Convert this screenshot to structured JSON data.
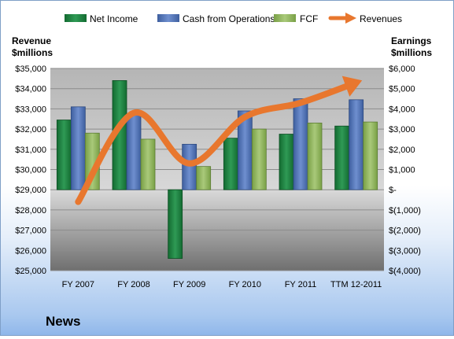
{
  "chart_data": {
    "type": "bar",
    "title": "News",
    "left_axis_label": [
      "Revenue",
      "$millions"
    ],
    "right_axis_label": [
      "Earnings",
      "$millions"
    ],
    "categories": [
      "FY 2007",
      "FY 2008",
      "FY 2009",
      "FY 2010",
      "FY 2011",
      "TTM 12-2011"
    ],
    "left_ticks": [
      "$35,000",
      "$34,000",
      "$33,000",
      "$32,000",
      "$31,000",
      "$30,000",
      "$29,000",
      "$28,000",
      "$27,000",
      "$26,000",
      "$25,000"
    ],
    "right_ticks": [
      "$6,000",
      "$5,000",
      "$4,000",
      "$3,000",
      "$2,000",
      "$1,000",
      "$-",
      "$(1,000)",
      "$(2,000)",
      "$(3,000)",
      "$(4,000)"
    ],
    "left_ylim": [
      25000,
      35000
    ],
    "right_ylim": [
      -4000,
      6000
    ],
    "series": [
      {
        "name": "Net Income",
        "axis": "right",
        "kind": "bar",
        "color": "#1f7a3e",
        "values": [
          3450,
          5400,
          -3400,
          2550,
          2750,
          3150
        ]
      },
      {
        "name": "Cash from Operations",
        "axis": "right",
        "kind": "bar",
        "color": "#4f73b8",
        "values": [
          4100,
          3750,
          2250,
          3900,
          4500,
          4450
        ]
      },
      {
        "name": "FCF",
        "axis": "right",
        "kind": "bar",
        "color": "#8fb35a",
        "values": [
          2800,
          2500,
          1150,
          3000,
          3300,
          3350
        ]
      },
      {
        "name": "Revenues",
        "axis": "left",
        "kind": "line",
        "color": "#e8772e",
        "values": [
          28400,
          32800,
          30300,
          32600,
          33300,
          34300
        ]
      }
    ],
    "legend_position": "top",
    "grid": true
  }
}
